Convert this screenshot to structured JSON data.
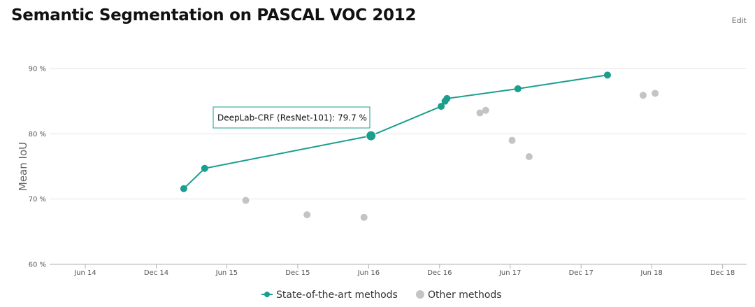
{
  "header": {
    "title": "Semantic Segmentation on PASCAL VOC 2012",
    "edit_label": "Edit"
  },
  "colors": {
    "sota": "#1a9e8e",
    "other": "#c4c4c4",
    "grid": "#e6e6e6",
    "axis": "#b0b0b0"
  },
  "chart_data": {
    "type": "scatter",
    "title": "Semantic Segmentation on PASCAL VOC 2012",
    "ylabel": "Mean IoU",
    "xlabel": "",
    "ylim": [
      60,
      90
    ],
    "xlim": [
      "2014-03-01",
      "2019-02-01"
    ],
    "y_ticks": [
      {
        "value": 60,
        "label": "60 %"
      },
      {
        "value": 70,
        "label": "70 %"
      },
      {
        "value": 80,
        "label": "80 %"
      },
      {
        "value": 90,
        "label": "90 %"
      }
    ],
    "x_ticks": [
      {
        "value": "2014-06-01",
        "label": "Jun 14"
      },
      {
        "value": "2014-12-01",
        "label": "Dec 14"
      },
      {
        "value": "2015-06-01",
        "label": "Jun 15"
      },
      {
        "value": "2015-12-01",
        "label": "Dec 15"
      },
      {
        "value": "2016-06-01",
        "label": "Jun 16"
      },
      {
        "value": "2016-12-01",
        "label": "Dec 16"
      },
      {
        "value": "2017-06-01",
        "label": "Jun 17"
      },
      {
        "value": "2017-12-01",
        "label": "Dec 17"
      },
      {
        "value": "2018-06-01",
        "label": "Jun 18"
      },
      {
        "value": "2018-12-01",
        "label": "Dec 18"
      }
    ],
    "grid": true,
    "legend_position": "bottom-center",
    "series": [
      {
        "name": "State-of-the-art methods",
        "style": "line-with-markers",
        "points": [
          {
            "x": "2015-02-10",
            "y": 71.6
          },
          {
            "x": "2015-04-05",
            "y": 74.7
          },
          {
            "x": "2016-06-07",
            "y": 79.7
          },
          {
            "x": "2016-12-05",
            "y": 84.2
          },
          {
            "x": "2016-12-15",
            "y": 85.0
          },
          {
            "x": "2016-12-20",
            "y": 85.4
          },
          {
            "x": "2017-06-21",
            "y": 86.9
          },
          {
            "x": "2018-02-07",
            "y": 89.0
          }
        ]
      },
      {
        "name": "Other methods",
        "style": "markers",
        "points": [
          {
            "x": "2015-07-20",
            "y": 69.8
          },
          {
            "x": "2015-12-25",
            "y": 67.6
          },
          {
            "x": "2016-05-20",
            "y": 67.2
          },
          {
            "x": "2017-03-15",
            "y": 83.2
          },
          {
            "x": "2017-03-30",
            "y": 83.6
          },
          {
            "x": "2017-06-06",
            "y": 79.0
          },
          {
            "x": "2017-07-20",
            "y": 76.5
          },
          {
            "x": "2018-05-10",
            "y": 85.9
          },
          {
            "x": "2018-06-10",
            "y": 86.2
          }
        ]
      }
    ],
    "highlight": {
      "series": 0,
      "point": 2,
      "tooltip": "DeepLab-CRF (ResNet-101): 79.7 %"
    }
  }
}
